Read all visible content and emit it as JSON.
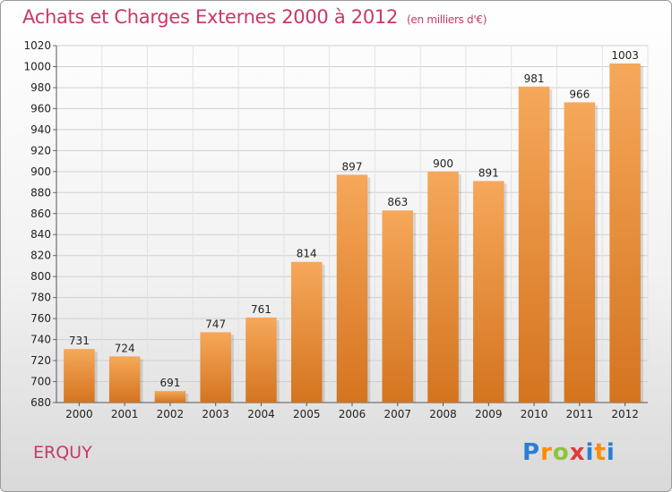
{
  "title": "Achats et Charges Externes 2000 à 2012",
  "unit": "(en milliers d'€)",
  "commune": "ERQUY",
  "logo": {
    "letters": [
      "P",
      "r",
      "o",
      "x",
      "i",
      "t",
      "i"
    ],
    "colors": [
      "#2a7fd4",
      "#ff8c00",
      "#8cc43c",
      "#e03a3a",
      "#2a7fd4",
      "#ff8c00",
      "#2a7fd4"
    ]
  },
  "colors": {
    "bar_top": "#f6a85a",
    "bar_bottom": "#d4741f",
    "title": "#c8386a",
    "grid": "#cfcfcf"
  },
  "chart_data": {
    "type": "bar",
    "categories": [
      "2000",
      "2001",
      "2002",
      "2003",
      "2004",
      "2005",
      "2006",
      "2007",
      "2008",
      "2009",
      "2010",
      "2011",
      "2012"
    ],
    "values": [
      731,
      724,
      691,
      747,
      761,
      814,
      897,
      863,
      900,
      891,
      981,
      966,
      1003
    ],
    "title": "Achats et Charges Externes 2000 à 2012",
    "xlabel": "",
    "ylabel": "",
    "ylim": [
      680,
      1020
    ],
    "yticks": [
      680,
      700,
      720,
      740,
      760,
      780,
      800,
      820,
      840,
      860,
      880,
      900,
      920,
      940,
      960,
      980,
      1000,
      1020
    ],
    "grid": true
  }
}
